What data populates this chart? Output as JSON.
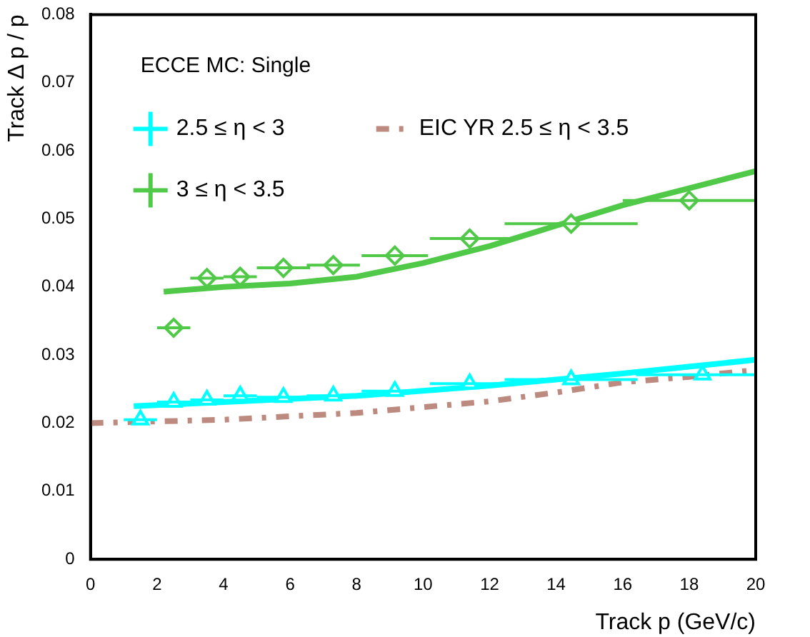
{
  "chart_data": {
    "type": "scatter",
    "xlabel": "Track p (GeV/c)",
    "ylabel": "Track Δ p / p",
    "annotations": [
      "ECCE MC: Single"
    ],
    "xlim": [
      0,
      20
    ],
    "xticks": [
      0,
      2,
      4,
      6,
      8,
      10,
      12,
      14,
      16,
      18,
      20
    ],
    "ylim": [
      0,
      0.08
    ],
    "yticks": [
      0,
      0.01,
      0.02,
      0.03,
      0.04,
      0.05,
      0.06,
      0.07,
      0.08
    ],
    "grid": false,
    "legend": "top left",
    "series": [
      {
        "name": "2.5 ≤ η < 3",
        "marker": "triangle",
        "color": "#00ffff",
        "x": [
          1.5,
          2.5,
          3.5,
          4.5,
          5.8,
          7.3,
          9.15,
          11.4,
          14.45,
          18.4
        ],
        "values": [
          0.0205,
          0.0231,
          0.0234,
          0.024,
          0.0238,
          0.024,
          0.0247,
          0.0258,
          0.0264,
          0.0271
        ],
        "xerrors": [
          0.5,
          0.5,
          0.5,
          0.5,
          0.8,
          0.8,
          1,
          1.2,
          2,
          [
            16.4,
            20
          ]
        ]
      },
      {
        "name": "EIC YR 2.5 ≤ η < 3.5",
        "type": "line",
        "marker": "none",
        "line_style": "dashed",
        "color": "#bc8a7e",
        "x": [
          0,
          4,
          8,
          12,
          14,
          16,
          18,
          20
        ],
        "values": [
          0.02,
          0.0205,
          0.0215,
          0.0232,
          0.0245,
          0.026,
          0.0268,
          0.0278
        ]
      },
      {
        "name": "3 ≤ η < 3.5",
        "marker": "diamond",
        "color": "#50c848",
        "x": [
          2.5,
          3.5,
          4.5,
          5.8,
          7.3,
          9.15,
          11.4,
          14.45,
          18
        ],
        "values": [
          0.034,
          0.0413,
          0.0415,
          0.0428,
          0.0432,
          0.0446,
          0.0471,
          0.0493,
          0.0527
        ],
        "xerrors": [
          0.5,
          0.5,
          0.5,
          0.8,
          0.8,
          1,
          1.2,
          2,
          2
        ]
      },
      {
        "type": "line",
        "marker": "none",
        "line_style": "solid",
        "color": "#00ffff",
        "x": [
          1.3,
          4,
          8,
          12,
          16,
          20
        ],
        "values": [
          0.0225,
          0.0231,
          0.024,
          0.0255,
          0.0273,
          0.0293
        ]
      },
      {
        "type": "line",
        "marker": "none",
        "line_style": "solid",
        "color": "#50c848",
        "x": [
          2.2,
          4,
          6,
          8,
          10,
          12,
          14,
          16,
          18,
          20
        ],
        "values": [
          0.0393,
          0.04,
          0.0405,
          0.0415,
          0.0435,
          0.046,
          0.049,
          0.052,
          0.0545,
          0.057
        ]
      }
    ]
  }
}
